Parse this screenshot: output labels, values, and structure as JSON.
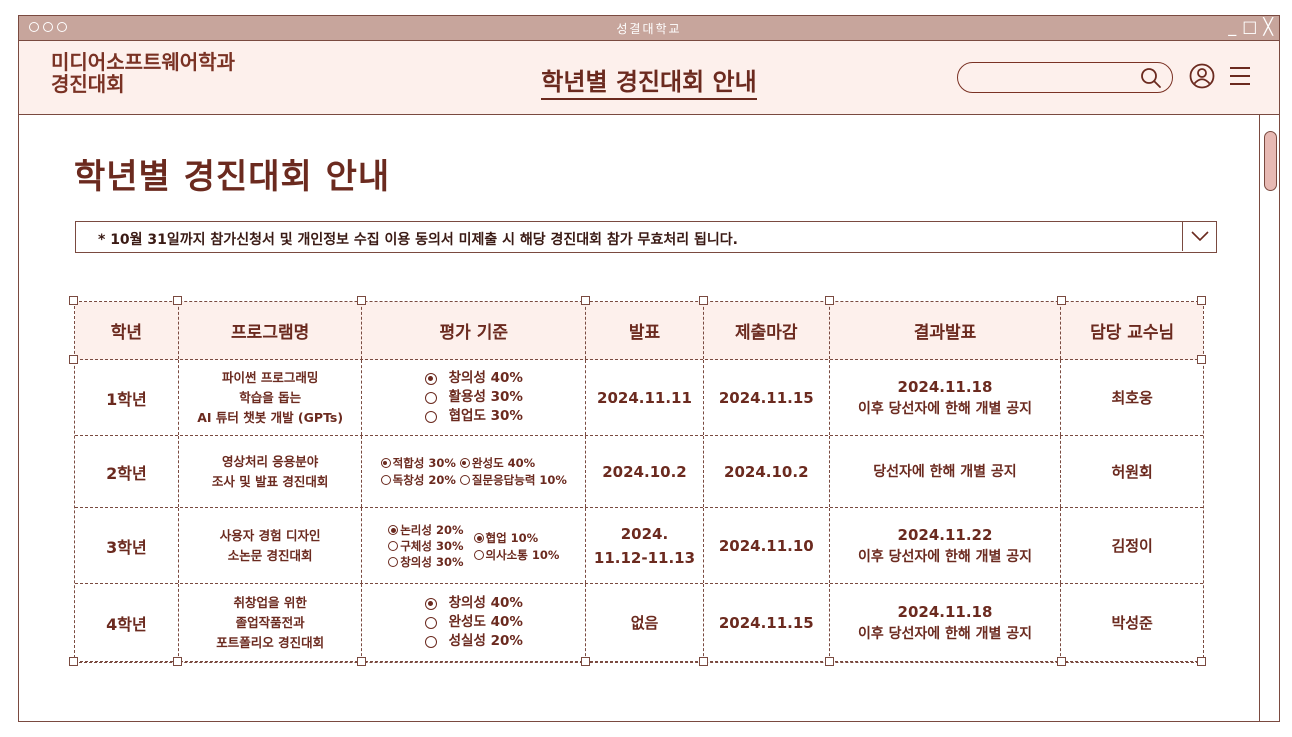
{
  "window": {
    "title": "성결대학교",
    "controls": [
      "_",
      "□",
      "╳"
    ]
  },
  "header": {
    "brand_line1": "미디어소프트웨어학과",
    "brand_line2": "경진대회",
    "nav_title": "학년별 경진대회 안내",
    "search_placeholder": ""
  },
  "page": {
    "title": "학년별 경진대회 안내",
    "notice": "* 10월 31일까지 참가신청서 및 개인정보 수집 이용 동의서 미제출 시 해당 경진대회 참가 무효처리 됩니다."
  },
  "table": {
    "headers": [
      "학년",
      "프로그램명",
      "평가 기준",
      "발표",
      "제출마감",
      "결과발표",
      "담당 교수님"
    ],
    "rows": [
      {
        "grade": "1학년",
        "program": [
          "파이썬 프로그래밍",
          "학습을 돕는",
          "AI 튜터 챗봇 개발 (GPTs)"
        ],
        "criteria": [
          {
            "label": "창의성 40%",
            "checked": true
          },
          {
            "label": "활용성 30%",
            "checked": false
          },
          {
            "label": "협업도 30%",
            "checked": false
          }
        ],
        "presentation": "2024.11.11",
        "deadline": "2024.11.15",
        "result_date": "2024.11.18",
        "result_note": "이후 당선자에 한해 개별 공지",
        "professor": "최호웅"
      },
      {
        "grade": "2학년",
        "program": [
          "영상처리 응용분야",
          "조사 및 발표 경진대회"
        ],
        "criteria": [
          {
            "label": "적합성 30%",
            "checked": true
          },
          {
            "label": "완성도 40%",
            "checked": true
          },
          {
            "label": "독창성 20%",
            "checked": false
          },
          {
            "label": "질문응답능력 10%",
            "checked": false
          }
        ],
        "presentation": "2024.10.2",
        "deadline": "2024.10.2",
        "result_date": "",
        "result_note": "당선자에 한해 개별 공지",
        "professor": "허원회"
      },
      {
        "grade": "3학년",
        "program": [
          "사용자 경험 디자인",
          "소논문 경진대회"
        ],
        "criteria": [
          {
            "label": "논리성 20%",
            "checked": true
          },
          {
            "label": "협업 10%",
            "checked": true
          },
          {
            "label": "구체성 30%",
            "checked": false
          },
          {
            "label": "의사소통 10%",
            "checked": false
          },
          {
            "label": "창의성 30%",
            "checked": false
          }
        ],
        "presentation_line1": "2024.",
        "presentation_line2": "11.12-11.13",
        "deadline": "2024.11.10",
        "result_date": "2024.11.22",
        "result_note": "이후 당선자에 한해 개별 공지",
        "professor": "김정이"
      },
      {
        "grade": "4학년",
        "program": [
          "취창업을 위한",
          "졸업작품전과",
          "포트폴리오 경진대회"
        ],
        "criteria": [
          {
            "label": "창의성 40%",
            "checked": true
          },
          {
            "label": "완성도 40%",
            "checked": false
          },
          {
            "label": "성실성 20%",
            "checked": false
          }
        ],
        "presentation": "없음",
        "deadline": "2024.11.15",
        "result_date": "2024.11.18",
        "result_note": "이후 당선자에 한해 개별 공지",
        "professor": "박성준"
      }
    ]
  },
  "colors": {
    "accent": "#6b2a1f",
    "titlebar": "#c7a59c",
    "header_bg": "#fdf0ec",
    "scroll_thumb": "#e7b9b3"
  },
  "icons": [
    "search-icon",
    "user-icon",
    "menu-icon",
    "chevron-down-icon"
  ]
}
